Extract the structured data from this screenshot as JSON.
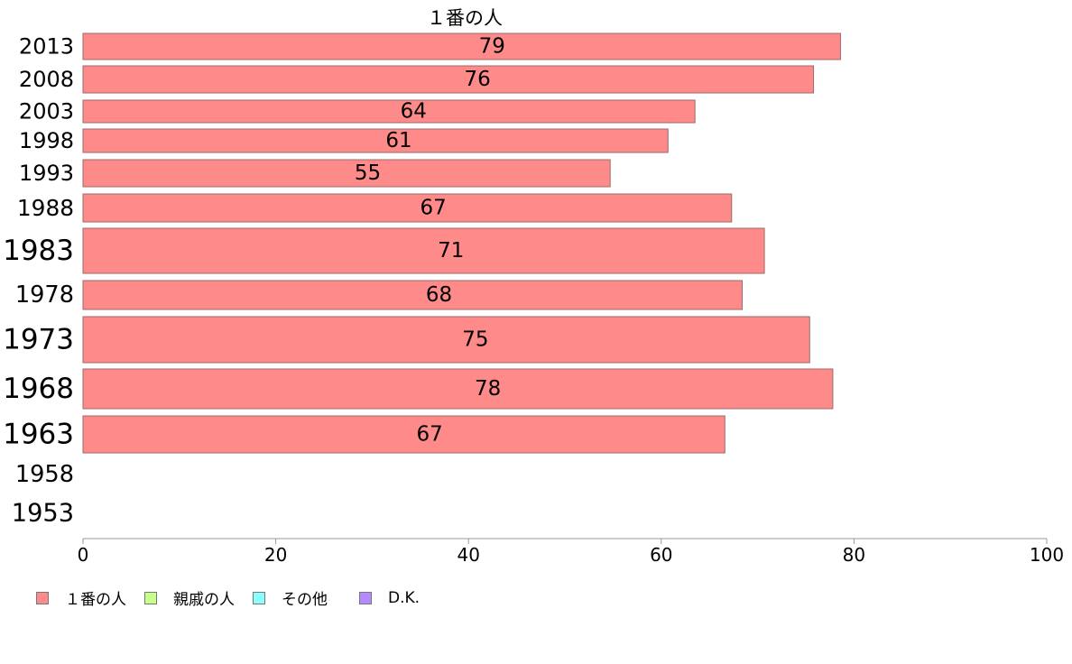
{
  "chart_data": {
    "type": "bar",
    "orientation": "horizontal",
    "title": "１番の人",
    "categories": [
      "2013",
      "2008",
      "2003",
      "1998",
      "1993",
      "1988",
      "1983",
      "1978",
      "1973",
      "1968",
      "1963",
      "1958",
      "1953"
    ],
    "series": [
      {
        "name": "１番の人",
        "values": [
          78.6,
          75.8,
          63.5,
          60.7,
          54.7,
          67.3,
          70.7,
          68.4,
          75.4,
          77.8,
          66.6,
          null,
          null
        ],
        "labels": [
          "79",
          "76",
          "64",
          "61",
          "55",
          "67",
          "71",
          "68",
          "75",
          "78",
          "67",
          "",
          ""
        ]
      }
    ],
    "xlim": [
      0,
      100
    ],
    "xticks": [
      0,
      20,
      40,
      60,
      80,
      100
    ],
    "xtick_labels": [
      "0",
      "20",
      "40",
      "60",
      "80",
      "100"
    ],
    "legend_position": "bottom-left",
    "grid": false
  },
  "legend": [
    {
      "label": "１番の人",
      "color": "#ff8a8a"
    },
    {
      "label": "親戚の人",
      "color": "#c6ff8a"
    },
    {
      "label": "その他",
      "color": "#8affff"
    },
    {
      "label": "D.K.",
      "color": "#b68aff"
    }
  ]
}
